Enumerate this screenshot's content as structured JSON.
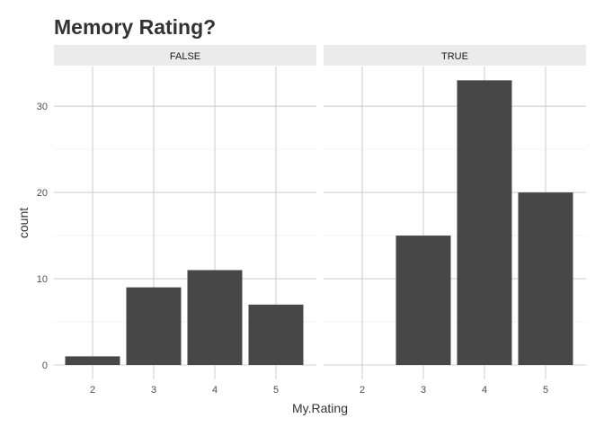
{
  "chart_data": {
    "type": "bar",
    "title": "Memory Rating?",
    "xlabel": "My.Rating",
    "ylabel": "count",
    "categories": [
      "2",
      "3",
      "4",
      "5"
    ],
    "yticks": [
      0,
      10,
      20,
      30
    ],
    "ylim": [
      0,
      34.6
    ],
    "grid": true,
    "facets": [
      {
        "label": "FALSE",
        "values": [
          1,
          9,
          11,
          7
        ]
      },
      {
        "label": "TRUE",
        "values": [
          0,
          15,
          33,
          20
        ]
      }
    ]
  }
}
